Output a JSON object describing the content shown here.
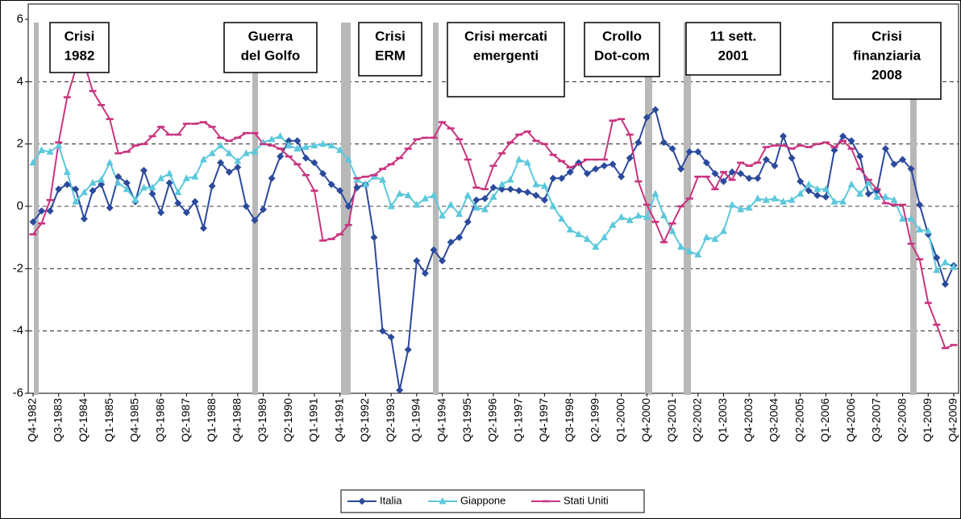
{
  "chart_data": {
    "type": "line",
    "categories": [
      "Q4-1982",
      null,
      null,
      "Q3-1983",
      null,
      null,
      "Q2-1984",
      null,
      null,
      "Q1-1985",
      null,
      null,
      "Q4-1985",
      null,
      null,
      "Q3-1986",
      null,
      null,
      "Q2-1987",
      null,
      null,
      "Q1-1988",
      null,
      null,
      "Q4-1988",
      null,
      null,
      "Q3-1989",
      null,
      null,
      "Q2-1990",
      null,
      null,
      "Q1-1991",
      null,
      null,
      "Q4-1991",
      null,
      null,
      "Q3-1992",
      null,
      null,
      "Q2-1993",
      null,
      null,
      "Q1-1994",
      null,
      null,
      "Q4-1994",
      null,
      null,
      "Q3-1995",
      null,
      null,
      "Q2-1996",
      null,
      null,
      "Q1-1997",
      null,
      null,
      "Q4-1997",
      null,
      null,
      "Q3-1998",
      null,
      null,
      "Q2-1999",
      null,
      null,
      "Q1-2000",
      null,
      null,
      "Q4-2000",
      null,
      null,
      "Q3-2001",
      null,
      null,
      "Q2-2002",
      null,
      null,
      "Q1-2003",
      null,
      null,
      "Q4-2003",
      null,
      null,
      "Q3-2004",
      null,
      null,
      "Q2-2005",
      null,
      null,
      "Q1-2006",
      null,
      null,
      "Q4-2006",
      null,
      null,
      "Q3-2007",
      null,
      null,
      "Q2-2008",
      null,
      null,
      "Q1-2009",
      null,
      null,
      "Q4-2009"
    ],
    "series": [
      {
        "name": "Italia",
        "color": "#2b4a9c",
        "marker": "diamond",
        "values": [
          -0.5,
          -0.15,
          -0.15,
          0.55,
          0.7,
          0.55,
          -0.4,
          0.5,
          0.7,
          -0.05,
          0.95,
          0.75,
          0.15,
          1.15,
          0.4,
          -0.2,
          0.75,
          0.1,
          -0.2,
          0.15,
          -0.7,
          0.65,
          1.4,
          1.1,
          1.25,
          0.0,
          -0.45,
          -0.1,
          0.9,
          1.6,
          2.1,
          2.1,
          1.55,
          1.4,
          1.05,
          0.7,
          0.5,
          0.0,
          0.6,
          0.7,
          -1.0,
          -4.0,
          -4.2,
          -5.9,
          -4.6,
          -1.75,
          -2.15,
          -1.4,
          -1.75,
          -1.15,
          -1.0,
          -0.5,
          0.2,
          0.25,
          0.6,
          0.55,
          0.55,
          0.5,
          0.45,
          0.35,
          0.2,
          0.9,
          0.9,
          1.1,
          1.4,
          1.05,
          1.2,
          1.3,
          1.35,
          0.95,
          1.55,
          2.05,
          2.85,
          3.1,
          2.05,
          1.85,
          1.2,
          1.75,
          1.75,
          1.4,
          1.05,
          0.8,
          1.1,
          1.05,
          0.9,
          0.9,
          1.5,
          1.3,
          2.25,
          1.55,
          0.8,
          0.5,
          0.35,
          0.3,
          1.8,
          2.25,
          2.1,
          1.6,
          0.4,
          0.5,
          1.85,
          1.35,
          1.5,
          1.2,
          0.05,
          -0.9,
          -1.65,
          -2.5,
          -1.9
        ]
      },
      {
        "name": "Giappone",
        "color": "#5cc8dc",
        "marker": "triangle",
        "values": [
          1.4,
          1.8,
          1.75,
          1.95,
          1.1,
          0.15,
          0.45,
          0.75,
          0.85,
          1.4,
          0.75,
          0.55,
          0.2,
          0.6,
          0.6,
          0.9,
          1.05,
          0.45,
          0.9,
          0.95,
          1.5,
          1.7,
          1.95,
          1.7,
          1.45,
          1.7,
          1.75,
          2.05,
          2.15,
          2.25,
          1.95,
          1.85,
          1.9,
          1.95,
          2.0,
          1.95,
          1.8,
          1.5,
          0.85,
          0.7,
          0.95,
          0.85,
          0.0,
          0.4,
          0.35,
          0.05,
          0.25,
          0.35,
          -0.3,
          0.05,
          -0.25,
          0.35,
          -0.05,
          -0.1,
          0.3,
          0.7,
          0.85,
          1.5,
          1.4,
          0.7,
          0.65,
          0.0,
          -0.4,
          -0.75,
          -0.9,
          -1.05,
          -1.3,
          -1.0,
          -0.6,
          -0.35,
          -0.45,
          -0.3,
          -0.35,
          0.4,
          -0.3,
          -0.8,
          -1.3,
          -1.45,
          -1.55,
          -1.0,
          -1.05,
          -0.8,
          0.05,
          -0.1,
          -0.05,
          0.25,
          0.2,
          0.25,
          0.15,
          0.2,
          0.4,
          0.7,
          0.55,
          0.55,
          0.15,
          0.15,
          0.7,
          0.4,
          0.75,
          0.3,
          0.3,
          0.2,
          -0.4,
          -0.4,
          -0.75,
          -0.8,
          -2.05,
          -1.8,
          -1.95
        ]
      },
      {
        "name": "Stati Uniti",
        "color": "#c8347f",
        "marker": "dash",
        "values": [
          -0.9,
          -0.55,
          0.2,
          2.05,
          3.5,
          4.4,
          4.6,
          3.7,
          3.25,
          2.8,
          1.7,
          1.75,
          1.95,
          2.0,
          2.25,
          2.55,
          2.3,
          2.3,
          2.65,
          2.65,
          2.7,
          2.55,
          2.2,
          2.1,
          2.2,
          2.35,
          2.35,
          2.0,
          1.95,
          1.85,
          1.6,
          1.35,
          1.0,
          0.5,
          -1.1,
          -1.05,
          -0.9,
          -0.6,
          0.9,
          0.95,
          1.0,
          1.2,
          1.35,
          1.55,
          1.85,
          2.15,
          2.2,
          2.2,
          2.7,
          2.5,
          2.15,
          1.5,
          0.6,
          0.55,
          1.3,
          1.7,
          2.05,
          2.3,
          2.4,
          2.1,
          2.0,
          1.65,
          1.45,
          1.25,
          1.35,
          1.5,
          1.5,
          1.5,
          2.75,
          2.8,
          2.3,
          0.8,
          0.05,
          -0.5,
          -1.15,
          -0.55,
          0.0,
          0.25,
          0.95,
          0.95,
          0.55,
          1.1,
          0.85,
          1.4,
          1.3,
          1.4,
          1.9,
          1.95,
          1.95,
          1.85,
          1.95,
          1.9,
          2.0,
          2.05,
          1.9,
          2.1,
          1.85,
          1.2,
          0.85,
          0.55,
          0.1,
          0.05,
          0.05,
          -1.2,
          -1.7,
          -3.1,
          -3.8,
          -4.55,
          -4.45
        ]
      }
    ],
    "ylim": [
      -6,
      6
    ],
    "yticks": [
      6,
      4,
      2,
      0,
      -2,
      -4,
      -6
    ],
    "grid": true,
    "annotations": [
      [
        "Crisi",
        "1982"
      ],
      [
        "Guerra",
        "del Golfo"
      ],
      [
        "Crisi",
        "ERM"
      ],
      [
        "Crisi mercati",
        "emergenti"
      ],
      [
        "Crollo",
        "Dot-com"
      ],
      [
        "11 sett.",
        "2001"
      ],
      [
        "Crisi",
        "finanziaria",
        "2008"
      ]
    ],
    "legend": "bottom"
  }
}
